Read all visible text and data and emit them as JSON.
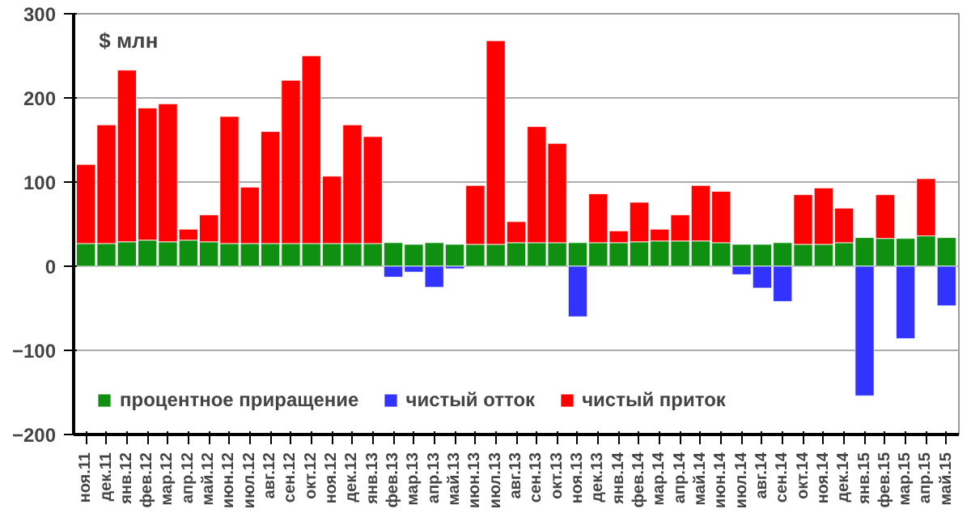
{
  "chart_data": {
    "type": "bar",
    "stacked": true,
    "ylabel": "$ млн",
    "categories": [
      "ноя.11",
      "дек.11",
      "янв.12",
      "фев.12",
      "мар.12",
      "апр.12",
      "май.12",
      "июн.12",
      "июл.12",
      "авг.12",
      "сен.12",
      "окт.12",
      "ноя.12",
      "дек.12",
      "янв.13",
      "фев.13",
      "мар.13",
      "апр.13",
      "май.13",
      "июн.13",
      "июл.13",
      "авг.13",
      "сен.13",
      "окт.13",
      "ноя.13",
      "дек.13",
      "янв.14",
      "фев.14",
      "мар.14",
      "апр.14",
      "май.14",
      "июн.14",
      "июл.14",
      "авг.14",
      "сен.14",
      "окт.14",
      "ноя.14",
      "дек.14",
      "янв.15",
      "фев.15",
      "мар.15",
      "апр.15",
      "май.15"
    ],
    "series": [
      {
        "name": "процентное приращение",
        "color": "#109010",
        "values": [
          27,
          27,
          29,
          31,
          29,
          31,
          29,
          27,
          27,
          27,
          27,
          27,
          27,
          27,
          27,
          28,
          26,
          28,
          26,
          26,
          26,
          28,
          28,
          28,
          28,
          28,
          28,
          29,
          30,
          30,
          30,
          28,
          26,
          26,
          28,
          26,
          26,
          28,
          34,
          33,
          33,
          36,
          34
        ]
      },
      {
        "name": "чистый отток",
        "color": "#3333ff",
        "values": [
          null,
          null,
          null,
          null,
          null,
          null,
          null,
          null,
          null,
          null,
          null,
          null,
          null,
          null,
          null,
          -13,
          -7,
          -25,
          -3,
          null,
          null,
          null,
          null,
          null,
          -60,
          null,
          null,
          null,
          null,
          null,
          null,
          null,
          -10,
          -26,
          -42,
          null,
          null,
          null,
          -154,
          null,
          -86,
          null,
          -47
        ]
      },
      {
        "name": "чистый приток",
        "color": "#ff0000",
        "values": [
          94,
          141,
          204,
          157,
          164,
          13,
          32,
          151,
          67,
          133,
          194,
          223,
          80,
          141,
          127,
          null,
          null,
          null,
          null,
          70,
          242,
          25,
          138,
          118,
          null,
          58,
          14,
          47,
          14,
          31,
          66,
          61,
          null,
          null,
          null,
          59,
          67,
          41,
          null,
          52,
          null,
          68,
          null
        ]
      }
    ],
    "ylim": [
      -200,
      300
    ],
    "yticks": [
      -200,
      -100,
      0,
      100,
      200,
      300
    ],
    "grid": "y",
    "legend": "bottom"
  }
}
